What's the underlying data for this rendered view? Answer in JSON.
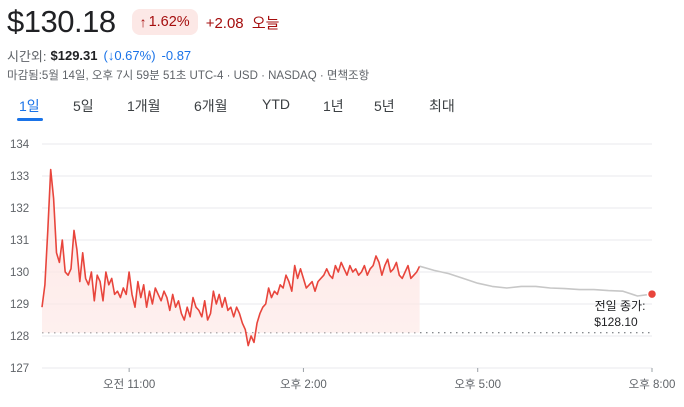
{
  "header": {
    "price": "$130.18",
    "pct_arrow": "↑",
    "pct": "1.62%",
    "change": "+2.08",
    "today_label": "오늘"
  },
  "after_hours": {
    "label": "시간외:",
    "price": "$129.31",
    "pct": "(↓0.67%)",
    "change": "-0.87"
  },
  "meta": "마감됨:5월 14일, 오후 7시 59분 51초 UTC-4 · USD · NASDAQ · 면책조항",
  "tabs": [
    {
      "label": "1일",
      "active": true
    },
    {
      "label": "5일",
      "active": false
    },
    {
      "label": "1개월",
      "active": false
    },
    {
      "label": "6개월",
      "active": false
    },
    {
      "label": "YTD",
      "active": false
    },
    {
      "label": "1년",
      "active": false
    },
    {
      "label": "5년",
      "active": false
    },
    {
      "label": "최대",
      "active": false
    }
  ],
  "colors": {
    "regular_line": "#e8453c",
    "regular_fill": "#fde7e5",
    "after_line": "#c7c7c7",
    "grid": "#e8eaed",
    "prev_close": "#5f6368",
    "end_dot": "#e8453c"
  },
  "chart_data": {
    "type": "line",
    "ylim": [
      127,
      134
    ],
    "y_ticks": [
      "134",
      "133",
      "132",
      "131",
      "130",
      "129",
      "128",
      "127"
    ],
    "x_ticks": [
      "오전 11:00",
      "오후 2:00",
      "오후 5:00",
      "오후 8:00"
    ],
    "prev_close_label": "전일 종가:",
    "prev_close_value_label": "$128.10",
    "prev_close": 128.1,
    "series": [
      {
        "session": "regular",
        "x": [
          "09:30",
          "09:33",
          "09:36",
          "09:39",
          "09:42",
          "09:45",
          "09:48",
          "09:51",
          "09:54",
          "09:57",
          "10:00",
          "10:03",
          "10:06",
          "10:09",
          "10:12",
          "10:15",
          "10:18",
          "10:21",
          "10:24",
          "10:27",
          "10:30",
          "10:33",
          "10:36",
          "10:39",
          "10:42",
          "10:45",
          "10:48",
          "10:51",
          "10:54",
          "10:57",
          "11:00",
          "11:03",
          "11:06",
          "11:09",
          "11:12",
          "11:15",
          "11:18",
          "11:21",
          "11:24",
          "11:27",
          "11:30",
          "11:33",
          "11:36",
          "11:39",
          "11:42",
          "11:45",
          "11:48",
          "11:51",
          "11:54",
          "11:57",
          "12:00",
          "12:03",
          "12:06",
          "12:09",
          "12:12",
          "12:15",
          "12:18",
          "12:21",
          "12:24",
          "12:27",
          "12:30",
          "12:33",
          "12:36",
          "12:39",
          "12:42",
          "12:45",
          "12:48",
          "12:51",
          "12:54",
          "12:57",
          "13:00",
          "13:03",
          "13:06",
          "13:09",
          "13:12",
          "13:15",
          "13:18",
          "13:21",
          "13:24",
          "13:27",
          "13:30",
          "13:33",
          "13:36",
          "13:39",
          "13:42",
          "13:45",
          "13:48",
          "13:51",
          "13:54",
          "13:57",
          "14:00",
          "14:03",
          "14:06",
          "14:09",
          "14:12",
          "14:15",
          "14:18",
          "14:21",
          "14:24",
          "14:27",
          "14:30",
          "14:33",
          "14:36",
          "14:39",
          "14:42",
          "14:45",
          "14:48",
          "14:51",
          "14:54",
          "14:57",
          "15:00",
          "15:03",
          "15:06",
          "15:09",
          "15:12",
          "15:15",
          "15:18",
          "15:21",
          "15:24",
          "15:27",
          "15:30",
          "15:33",
          "15:36",
          "15:39",
          "15:42",
          "15:45",
          "15:48",
          "15:51",
          "15:54",
          "15:57",
          "16:00"
        ],
        "values": [
          128.9,
          129.6,
          131.3,
          133.2,
          132.3,
          130.6,
          130.3,
          131.0,
          130.0,
          129.9,
          130.1,
          131.3,
          130.7,
          129.7,
          130.6,
          129.8,
          129.6,
          130.0,
          129.1,
          129.9,
          129.7,
          129.1,
          130.0,
          129.6,
          129.8,
          129.3,
          129.4,
          129.2,
          129.5,
          129.3,
          130.0,
          129.3,
          128.9,
          129.7,
          129.2,
          129.6,
          128.9,
          129.4,
          129.0,
          129.5,
          129.3,
          129.1,
          129.4,
          129.2,
          128.8,
          129.3,
          128.9,
          129.1,
          128.7,
          128.5,
          128.9,
          128.6,
          129.2,
          128.9,
          128.8,
          128.6,
          129.1,
          128.5,
          128.7,
          129.4,
          129.0,
          129.3,
          128.9,
          129.2,
          128.8,
          128.9,
          128.6,
          128.9,
          128.7,
          128.4,
          128.2,
          127.7,
          128.0,
          127.8,
          128.4,
          128.7,
          128.9,
          129.0,
          129.5,
          129.2,
          129.4,
          129.3,
          129.6,
          129.5,
          129.9,
          129.7,
          129.4,
          130.2,
          129.8,
          130.1,
          129.8,
          129.5,
          129.6,
          129.7,
          129.4,
          129.7,
          129.8,
          129.9,
          130.1,
          129.9,
          129.8,
          130.2,
          130.0,
          130.3,
          130.1,
          129.9,
          130.2,
          130.0,
          130.1,
          129.9,
          130.0,
          130.2,
          129.9,
          130.1,
          130.2,
          130.5,
          130.3,
          129.9,
          130.2,
          130.4,
          130.0,
          130.1,
          130.3,
          129.9,
          129.8,
          130.0,
          130.2,
          129.8,
          129.9,
          130.0,
          130.18
        ]
      },
      {
        "session": "after_hours",
        "x": [
          "16:00",
          "16:15",
          "16:30",
          "16:45",
          "17:00",
          "17:15",
          "17:30",
          "17:45",
          "18:00",
          "18:15",
          "18:30",
          "18:45",
          "19:00",
          "19:15",
          "19:30",
          "19:45",
          "20:00"
        ],
        "values": [
          130.18,
          130.05,
          129.95,
          129.8,
          129.65,
          129.55,
          129.5,
          129.55,
          129.55,
          129.5,
          129.48,
          129.45,
          129.45,
          129.42,
          129.4,
          129.25,
          129.31
        ]
      }
    ]
  }
}
